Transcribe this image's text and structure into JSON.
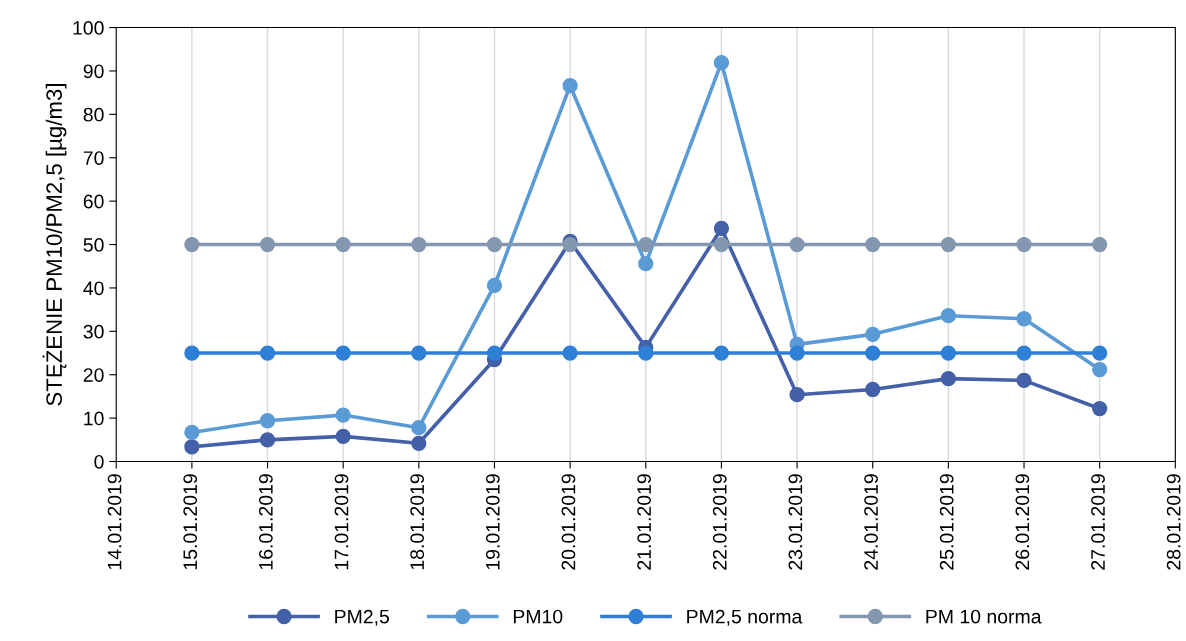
{
  "chart_data": {
    "type": "line",
    "ylabel": "STĘŻENIE PM10/PM2,5 [µg/m3]",
    "x": [
      "2019-01-15",
      "2019-01-16",
      "2019-01-17",
      "2019-01-18",
      "2019-01-19",
      "2019-01-20",
      "2019-01-21",
      "2019-01-22",
      "2019-01-23",
      "2019-01-24",
      "2019-01-25",
      "2019-01-26",
      "2019-01-27"
    ],
    "series": [
      {
        "name": "PM2,5",
        "color": "#4460a8",
        "values": [
          3.4,
          5.0,
          5.8,
          4.2,
          23.5,
          50.7,
          26.3,
          53.7,
          15.4,
          16.6,
          19.1,
          18.7,
          12.2
        ]
      },
      {
        "name": "PM10",
        "color": "#5b9bd5",
        "values": [
          6.7,
          9.4,
          10.7,
          7.8,
          40.6,
          86.6,
          45.6,
          91.9,
          27.0,
          29.3,
          33.6,
          32.9,
          21.2
        ]
      },
      {
        "name": "PM2,5 norma",
        "color": "#2e7fd6",
        "values": [
          25,
          25,
          25,
          25,
          25,
          25,
          25,
          25,
          25,
          25,
          25,
          25,
          25
        ]
      },
      {
        "name": "PM 10 norma",
        "color": "#8497b0",
        "values": [
          50,
          50,
          50,
          50,
          50,
          50,
          50,
          50,
          50,
          50,
          50,
          50,
          50
        ]
      }
    ],
    "xlim": [
      "2019-01-14",
      "2019-01-28"
    ],
    "xticks": [
      {
        "value": "2019-01-14",
        "label": "14.01.2019"
      },
      {
        "value": "2019-01-15",
        "label": "15.01.2019"
      },
      {
        "value": "2019-01-16",
        "label": "16.01.2019"
      },
      {
        "value": "2019-01-17",
        "label": "17.01.2019"
      },
      {
        "value": "2019-01-18",
        "label": "18.01.2019"
      },
      {
        "value": "2019-01-19",
        "label": "19.01.2019"
      },
      {
        "value": "2019-01-20",
        "label": "20.01.2019"
      },
      {
        "value": "2019-01-21",
        "label": "21.01.2019"
      },
      {
        "value": "2019-01-22",
        "label": "22.01.2019"
      },
      {
        "value": "2019-01-23",
        "label": "23.01.2019"
      },
      {
        "value": "2019-01-24",
        "label": "24.01.2019"
      },
      {
        "value": "2019-01-25",
        "label": "25.01.2019"
      },
      {
        "value": "2019-01-26",
        "label": "26.01.2019"
      },
      {
        "value": "2019-01-27",
        "label": "27.01.2019"
      },
      {
        "value": "2019-01-28",
        "label": "28.01.2019"
      }
    ],
    "ylim": [
      0,
      100
    ],
    "yticks": [
      0,
      10,
      20,
      30,
      40,
      50,
      60,
      70,
      80,
      90,
      100
    ],
    "grid": "x",
    "legend": "bottom",
    "marker": "circle",
    "line_style": "solid"
  }
}
